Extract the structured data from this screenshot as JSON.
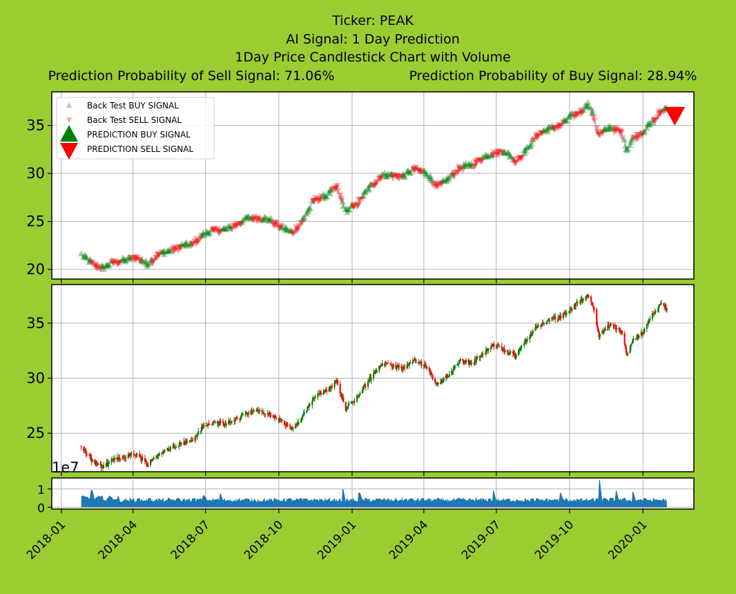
{
  "titles": {
    "ticker": "Ticker: PEAK",
    "signal": "AI Signal: 1 Day Prediction",
    "chart": "1Day Price Candlestick Chart with Volume",
    "sell_prob": "Prediction Probability of Sell Signal: 71.06%",
    "buy_prob": "Prediction Probability of Buy Signal: 28.94%"
  },
  "colors": {
    "background": "#9acd32",
    "buy": "#008000",
    "sell": "#ff0000",
    "volume": "#1f77b4",
    "grid": "#b0b0b0",
    "line": "#aac7e6"
  },
  "chart_data": [
    {
      "type": "scatter",
      "panel": "signals",
      "x_type": "date",
      "xlim": [
        "2017-12-20",
        "2020-03-05"
      ],
      "ylim": [
        19,
        38.5
      ],
      "x_tick_labels": [
        "2018-01",
        "2018-04",
        "2018-07",
        "2018-10",
        "2019-01",
        "2019-04",
        "2019-07",
        "2019-10",
        "2020-01"
      ],
      "y_ticks": [
        20,
        25,
        30,
        35
      ],
      "grid": true,
      "legend_position": "upper-left",
      "legend": [
        "Back Test BUY SIGNAL",
        "Back Test SELL SIGNAL",
        "PREDICTION BUY SIGNAL",
        "PREDICTION SELL SIGNAL"
      ],
      "price_anchors": [
        [
          "2018-01-26",
          21.5
        ],
        [
          "2018-02-09",
          20.6
        ],
        [
          "2018-02-22",
          20.1
        ],
        [
          "2018-03-08",
          20.8
        ],
        [
          "2018-03-22",
          20.9
        ],
        [
          "2018-04-05",
          21.3
        ],
        [
          "2018-04-19",
          20.5
        ],
        [
          "2018-05-03",
          21.6
        ],
        [
          "2018-05-17",
          21.9
        ],
        [
          "2018-05-31",
          22.4
        ],
        [
          "2018-06-14",
          22.6
        ],
        [
          "2018-06-28",
          23.6
        ],
        [
          "2018-07-12",
          24.1
        ],
        [
          "2018-07-26",
          24.1
        ],
        [
          "2018-08-09",
          24.7
        ],
        [
          "2018-08-23",
          25.3
        ],
        [
          "2018-09-06",
          25.4
        ],
        [
          "2018-09-20",
          25.1
        ],
        [
          "2018-10-04",
          24.4
        ],
        [
          "2018-10-18",
          23.8
        ],
        [
          "2018-11-01",
          25.2
        ],
        [
          "2018-11-15",
          27.3
        ],
        [
          "2018-11-29",
          27.6
        ],
        [
          "2018-12-13",
          28.6
        ],
        [
          "2018-12-24",
          26.0
        ],
        [
          "2019-01-07",
          26.8
        ],
        [
          "2019-01-24",
          28.6
        ],
        [
          "2019-02-07",
          29.8
        ],
        [
          "2019-02-21",
          29.8
        ],
        [
          "2019-03-07",
          29.7
        ],
        [
          "2019-03-21",
          30.5
        ],
        [
          "2019-04-04",
          30.0
        ],
        [
          "2019-04-18",
          28.6
        ],
        [
          "2019-05-02",
          29.4
        ],
        [
          "2019-05-16",
          30.6
        ],
        [
          "2019-05-30",
          30.8
        ],
        [
          "2019-06-13",
          31.6
        ],
        [
          "2019-06-27",
          32.1
        ],
        [
          "2019-07-11",
          32.3
        ],
        [
          "2019-07-25",
          31.3
        ],
        [
          "2019-08-08",
          32.4
        ],
        [
          "2019-08-22",
          34.1
        ],
        [
          "2019-09-05",
          34.6
        ],
        [
          "2019-09-19",
          35.0
        ],
        [
          "2019-10-03",
          35.9
        ],
        [
          "2019-10-17",
          36.6
        ],
        [
          "2019-10-24",
          37.2
        ],
        [
          "2019-10-31",
          36.0
        ],
        [
          "2019-11-07",
          34.0
        ],
        [
          "2019-11-21",
          34.8
        ],
        [
          "2019-12-05",
          34.3
        ],
        [
          "2019-12-12",
          32.4
        ],
        [
          "2019-12-19",
          33.6
        ],
        [
          "2020-01-02",
          34.4
        ],
        [
          "2020-01-16",
          35.6
        ],
        [
          "2020-01-24",
          36.5
        ],
        [
          "2020-01-31",
          36.8
        ]
      ],
      "signal_flip_days": 9,
      "prediction_sell": [
        "2020-02-10",
        36.0
      ]
    },
    {
      "type": "candlestick",
      "panel": "price",
      "x_type": "date",
      "ylim": [
        21.5,
        38.5
      ],
      "y_ticks": [
        25,
        30,
        35
      ],
      "grid": true,
      "price_anchors": [
        [
          "2018-01-26",
          23.8
        ],
        [
          "2018-02-09",
          22.5
        ],
        [
          "2018-02-22",
          21.9
        ],
        [
          "2018-03-08",
          22.6
        ],
        [
          "2018-03-22",
          22.9
        ],
        [
          "2018-04-05",
          23.1
        ],
        [
          "2018-04-19",
          22.2
        ],
        [
          "2018-05-03",
          23.1
        ],
        [
          "2018-05-17",
          23.6
        ],
        [
          "2018-05-31",
          24.1
        ],
        [
          "2018-06-14",
          24.3
        ],
        [
          "2018-06-28",
          25.6
        ],
        [
          "2018-07-12",
          26.0
        ],
        [
          "2018-07-26",
          25.8
        ],
        [
          "2018-08-09",
          26.3
        ],
        [
          "2018-08-23",
          26.9
        ],
        [
          "2018-09-06",
          27.0
        ],
        [
          "2018-09-20",
          26.7
        ],
        [
          "2018-10-04",
          26.1
        ],
        [
          "2018-10-18",
          25.3
        ],
        [
          "2018-11-01",
          26.6
        ],
        [
          "2018-11-15",
          28.4
        ],
        [
          "2018-11-29",
          28.9
        ],
        [
          "2018-12-13",
          29.7
        ],
        [
          "2018-12-24",
          27.2
        ],
        [
          "2019-01-07",
          28.3
        ],
        [
          "2019-01-24",
          30.0
        ],
        [
          "2019-02-07",
          31.3
        ],
        [
          "2019-02-21",
          31.1
        ],
        [
          "2019-03-07",
          30.9
        ],
        [
          "2019-03-21",
          31.6
        ],
        [
          "2019-04-04",
          31.0
        ],
        [
          "2019-04-18",
          29.4
        ],
        [
          "2019-05-02",
          30.3
        ],
        [
          "2019-05-16",
          31.6
        ],
        [
          "2019-05-30",
          31.4
        ],
        [
          "2019-06-13",
          32.1
        ],
        [
          "2019-06-27",
          33.0
        ],
        [
          "2019-07-11",
          32.6
        ],
        [
          "2019-07-25",
          32.0
        ],
        [
          "2019-08-08",
          33.6
        ],
        [
          "2019-08-22",
          34.7
        ],
        [
          "2019-09-05",
          35.3
        ],
        [
          "2019-09-19",
          35.5
        ],
        [
          "2019-10-03",
          36.3
        ],
        [
          "2019-10-17",
          37.2
        ],
        [
          "2019-10-24",
          37.6
        ],
        [
          "2019-10-31",
          36.4
        ],
        [
          "2019-11-07",
          33.8
        ],
        [
          "2019-11-21",
          34.9
        ],
        [
          "2019-12-05",
          34.2
        ],
        [
          "2019-12-12",
          32.2
        ],
        [
          "2019-12-19",
          33.5
        ],
        [
          "2020-01-02",
          34.2
        ],
        [
          "2020-01-16",
          36.1
        ],
        [
          "2020-01-24",
          36.9
        ],
        [
          "2020-01-31",
          36.2
        ]
      ]
    },
    {
      "type": "area",
      "panel": "volume",
      "x_type": "date",
      "ylim": [
        -0.1,
        1.6
      ],
      "y_ticks": [
        0,
        1
      ],
      "y_tick_labels": [
        "0",
        "1"
      ],
      "offset_text": "1e7",
      "grid": true,
      "base_level": 0.42,
      "spikes": [
        [
          "2018-02-08",
          0.75
        ],
        [
          "2018-06-29",
          0.65
        ],
        [
          "2018-07-20",
          0.75
        ],
        [
          "2018-12-21",
          1.0
        ],
        [
          "2019-01-10",
          0.8
        ],
        [
          "2019-06-28",
          0.9
        ],
        [
          "2019-09-20",
          0.8
        ],
        [
          "2019-11-08",
          1.5
        ],
        [
          "2019-11-29",
          0.9
        ],
        [
          "2019-12-20",
          0.85
        ]
      ]
    }
  ]
}
